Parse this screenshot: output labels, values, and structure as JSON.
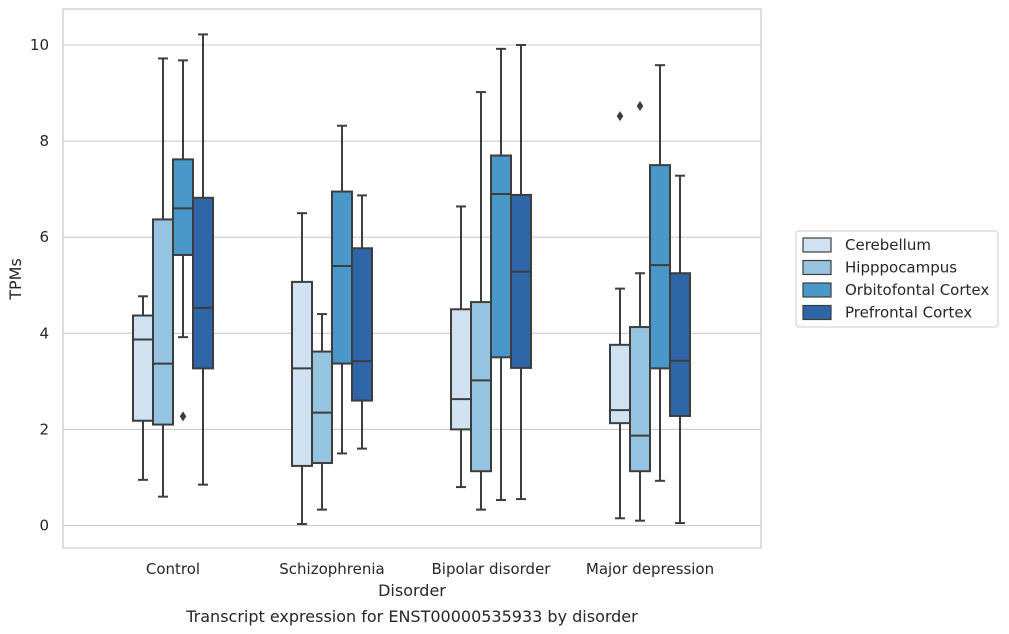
{
  "chart_data": {
    "type": "box",
    "caption": "Transcript expression for ENST00000535933 by disorder",
    "xlabel": "Disorder",
    "ylabel": "TPMs",
    "ylim": [
      -0.4,
      10.75
    ],
    "yticks": [
      0,
      2,
      4,
      6,
      8,
      10
    ],
    "grid": "horizontal",
    "legend_position": "right",
    "categories": [
      "Control",
      "Schizophrenia",
      "Bipolar disorder",
      "Major depression"
    ],
    "series": [
      {
        "name": "Cerebellum",
        "color": "#d0e1f2",
        "boxes": [
          {
            "whisker_low": 0.95,
            "q1": 2.18,
            "median": 3.87,
            "q3": 4.37,
            "whisker_high": 4.77,
            "outliers": []
          },
          {
            "whisker_low": 0.03,
            "q1": 1.24,
            "median": 3.27,
            "q3": 5.07,
            "whisker_high": 6.5,
            "outliers": []
          },
          {
            "whisker_low": 0.8,
            "q1": 2.0,
            "median": 2.63,
            "q3": 4.5,
            "whisker_high": 6.64,
            "outliers": []
          },
          {
            "whisker_low": 0.15,
            "q1": 2.13,
            "median": 2.4,
            "q3": 3.76,
            "whisker_high": 4.93,
            "outliers": [
              8.52
            ]
          }
        ]
      },
      {
        "name": "Hipppocampus",
        "color": "#94c4df",
        "boxes": [
          {
            "whisker_low": 0.6,
            "q1": 2.1,
            "median": 3.37,
            "q3": 6.37,
            "whisker_high": 9.72,
            "outliers": []
          },
          {
            "whisker_low": 0.33,
            "q1": 1.3,
            "median": 2.35,
            "q3": 3.62,
            "whisker_high": 4.4,
            "outliers": []
          },
          {
            "whisker_low": 0.33,
            "q1": 1.13,
            "median": 3.02,
            "q3": 4.65,
            "whisker_high": 9.02,
            "outliers": []
          },
          {
            "whisker_low": 0.1,
            "q1": 1.13,
            "median": 1.87,
            "q3": 4.13,
            "whisker_high": 5.25,
            "outliers": [
              8.73
            ]
          }
        ]
      },
      {
        "name": "Orbitofontal Cortex",
        "color": "#4a98c9",
        "boxes": [
          {
            "whisker_low": 3.92,
            "q1": 5.63,
            "median": 6.6,
            "q3": 7.62,
            "whisker_high": 9.68,
            "outliers": [
              2.27
            ]
          },
          {
            "whisker_low": 1.5,
            "q1": 3.37,
            "median": 5.4,
            "q3": 6.95,
            "whisker_high": 8.32,
            "outliers": []
          },
          {
            "whisker_low": 0.53,
            "q1": 3.5,
            "median": 6.9,
            "q3": 7.7,
            "whisker_high": 9.92,
            "outliers": []
          },
          {
            "whisker_low": 0.93,
            "q1": 3.27,
            "median": 5.42,
            "q3": 7.5,
            "whisker_high": 9.58,
            "outliers": []
          }
        ]
      },
      {
        "name": "Prefrontal Cortex",
        "color": "#2e66a8",
        "boxes": [
          {
            "whisker_low": 0.85,
            "q1": 3.27,
            "median": 4.53,
            "q3": 6.82,
            "whisker_high": 10.22,
            "outliers": []
          },
          {
            "whisker_low": 1.6,
            "q1": 2.6,
            "median": 3.42,
            "q3": 5.77,
            "whisker_high": 6.87,
            "outliers": []
          },
          {
            "whisker_low": 0.55,
            "q1": 3.28,
            "median": 5.28,
            "q3": 6.88,
            "whisker_high": 10.0,
            "outliers": []
          },
          {
            "whisker_low": 0.05,
            "q1": 2.28,
            "median": 3.43,
            "q3": 5.25,
            "whisker_high": 7.28,
            "outliers": []
          }
        ]
      }
    ]
  }
}
